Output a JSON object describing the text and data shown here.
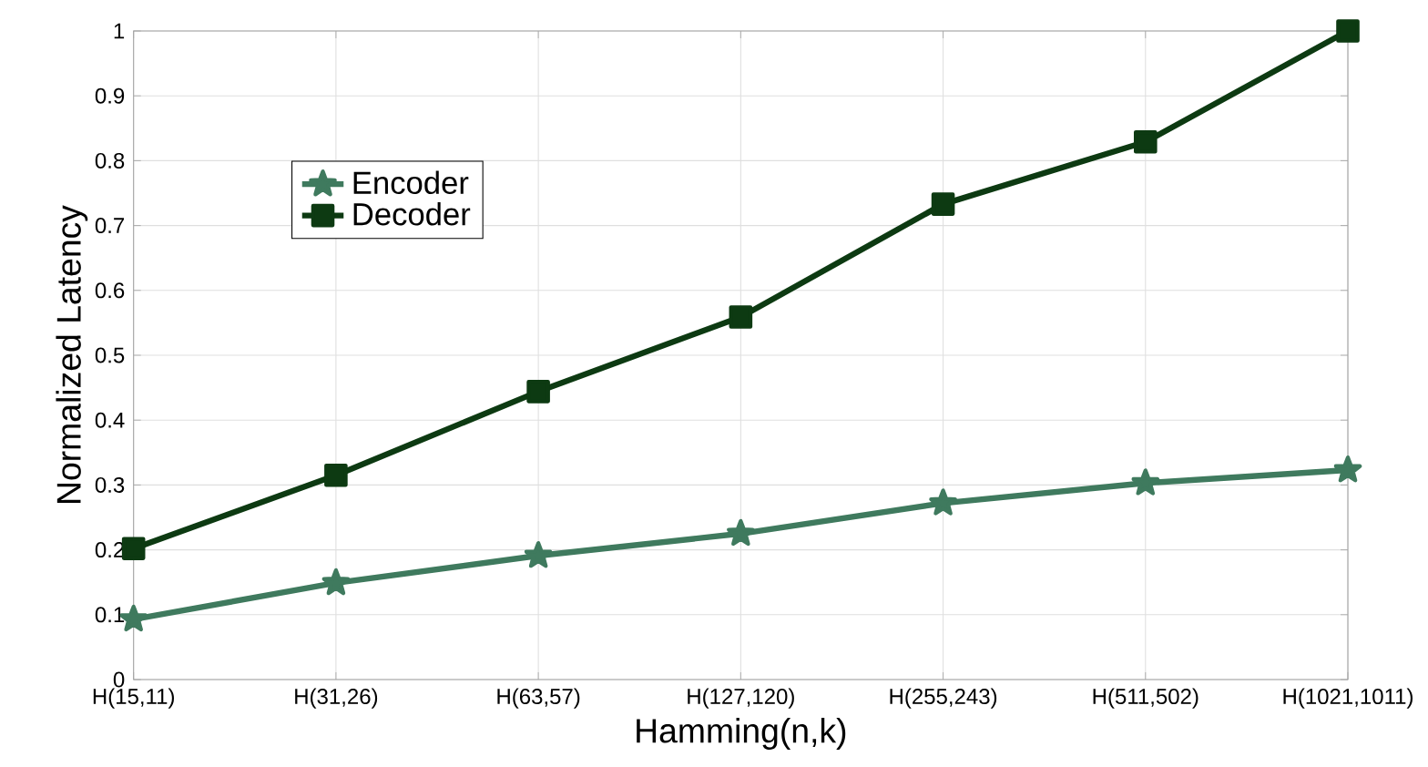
{
  "chart_data": {
    "type": "line",
    "xlabel": "Hamming(n,k)",
    "ylabel": "Normalized Latency",
    "categories": [
      "H(15,11)",
      "H(31,26)",
      "H(63,57)",
      "H(127,120)",
      "H(255,243)",
      "H(511,502)",
      "H(1021,1011)"
    ],
    "series": [
      {
        "name": "Encoder",
        "color": "#3f7a5e",
        "marker": "star",
        "values": [
          0.093,
          0.149,
          0.191,
          0.225,
          0.272,
          0.303,
          0.323
        ]
      },
      {
        "name": "Decoder",
        "color": "#0d3a12",
        "marker": "square",
        "values": [
          0.202,
          0.315,
          0.444,
          0.559,
          0.733,
          0.829,
          1.0
        ]
      }
    ],
    "ylim": [
      0,
      1
    ],
    "yticks": [
      0,
      0.1,
      0.2,
      0.3,
      0.4,
      0.5,
      0.6,
      0.7,
      0.8,
      0.9,
      1
    ],
    "grid": true,
    "legend": "top left",
    "line_style": "solid"
  }
}
